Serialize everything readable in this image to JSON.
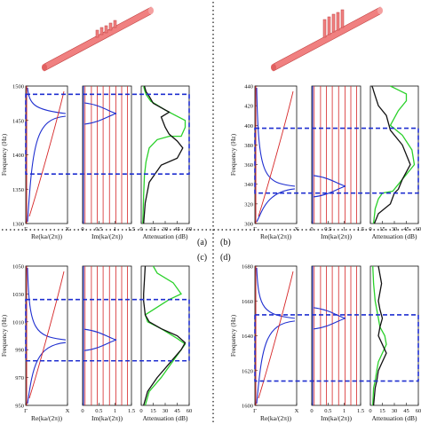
{
  "figure": {
    "panel_labels": [
      "(a)",
      "(b)",
      "(c)",
      "(d)"
    ],
    "colors": {
      "re_curve": "#d62728",
      "im_curve": "#d62728",
      "mode_curve": "#1f2fd0",
      "band_box": "#1f2fd0",
      "pipe": "#f08080",
      "attenuation_1": "#2ad12a",
      "attenuation_2": "#111111"
    },
    "icons": [
      "pipe-with-resonators-left",
      "pipe-with-resonators-right"
    ]
  },
  "chart_data": [
    {
      "type": "line",
      "panel": "(a)",
      "ylabel": "Frequency (Hz)",
      "ylim": [
        1300,
        1500
      ],
      "yticks": [
        "1300",
        "1350",
        "1400",
        "1450",
        "1500"
      ],
      "subplots": [
        {
          "xlabel": "Re(ka/(2π))",
          "xticks": [
            "Γ",
            "X"
          ],
          "xlim": [
            0,
            1
          ]
        },
        {
          "xlabel": "Im(ka/(2π))",
          "xticks": [
            "0",
            "0.5",
            "1",
            "1.5"
          ],
          "xlim": [
            0,
            1.5
          ]
        },
        {
          "xlabel": "Attenuation (dB)",
          "xticks": [
            "0",
            "15",
            "30",
            "45",
            "60"
          ],
          "xlim": [
            0,
            60
          ]
        }
      ],
      "band_edges": [
        1372,
        1488
      ],
      "mode_lines": [
        1460
      ],
      "attenuation": {
        "green": {
          "x": [
            2,
            3,
            4,
            6,
            10,
            20,
            35,
            50,
            55,
            55,
            30,
            12,
            6,
            4,
            3
          ],
          "y": [
            1300,
            1340,
            1370,
            1390,
            1410,
            1422,
            1427,
            1427,
            1440,
            1450,
            1465,
            1478,
            1488,
            1495,
            1500
          ]
        },
        "black": {
          "x": [
            3,
            5,
            10,
            25,
            45,
            52,
            45,
            35,
            30,
            25,
            35,
            15,
            10,
            6,
            4
          ],
          "y": [
            1300,
            1330,
            1360,
            1385,
            1395,
            1410,
            1420,
            1430,
            1440,
            1455,
            1462,
            1475,
            1485,
            1492,
            1500
          ]
        }
      }
    },
    {
      "type": "line",
      "panel": "(b)",
      "ylabel": "Frequency (Hz)",
      "ylim": [
        300,
        440
      ],
      "yticks": [
        "300",
        "320",
        "340",
        "360",
        "380",
        "400",
        "420",
        "440"
      ],
      "subplots": [
        {
          "xlabel": "Re(ka/(2π))",
          "xticks": [
            "Γ",
            "X"
          ],
          "xlim": [
            0,
            1
          ]
        },
        {
          "xlabel": "Im(ka/(2π))",
          "xticks": [
            "0",
            "0.5",
            "1",
            "1.5"
          ],
          "xlim": [
            0,
            1.5
          ]
        },
        {
          "xlabel": "Attenuation (dB)",
          "xticks": [
            "0",
            "15",
            "30",
            "45",
            "60"
          ],
          "xlim": [
            0,
            60
          ]
        }
      ],
      "band_edges": [
        331,
        397
      ],
      "mode_lines": [
        338
      ],
      "attenuation": {
        "green": {
          "x": [
            4,
            6,
            10,
            15,
            28,
            40,
            55,
            52,
            40,
            25,
            35,
            45,
            45,
            35,
            25
          ],
          "y": [
            300,
            315,
            325,
            331,
            333,
            345,
            360,
            375,
            390,
            400,
            415,
            425,
            432,
            436,
            440
          ]
        },
        "black": {
          "x": [
            5,
            10,
            25,
            30,
            35,
            40,
            50,
            40,
            25,
            20,
            10,
            6,
            4,
            3,
            2
          ],
          "y": [
            300,
            310,
            320,
            331,
            335,
            345,
            360,
            380,
            395,
            410,
            420,
            430,
            435,
            438,
            440
          ]
        }
      }
    },
    {
      "type": "line",
      "panel": "(c)",
      "ylabel": "Frequency (Hz)",
      "ylim": [
        950,
        1050
      ],
      "yticks": [
        "950",
        "970",
        "990",
        "1010",
        "1030",
        "1050"
      ],
      "subplots": [
        {
          "xlabel": "Re(ka/(2π))",
          "xticks": [
            "Γ",
            "X"
          ],
          "xlim": [
            0,
            1
          ]
        },
        {
          "xlabel": "Im(ka/(2π))",
          "xticks": [
            "0",
            "0.5",
            "1",
            "1.5"
          ],
          "xlim": [
            0,
            1.5
          ]
        },
        {
          "xlabel": "Attenuation (dB)",
          "xticks": [
            "0",
            "15",
            "30",
            "45",
            "60"
          ],
          "xlim": [
            0,
            60
          ]
        }
      ],
      "band_edges": [
        982,
        1026
      ],
      "mode_lines": [
        997
      ],
      "attenuation": {
        "green": {
          "x": [
            5,
            10,
            25,
            40,
            50,
            55,
            45,
            25,
            8,
            5,
            35,
            50,
            40,
            20,
            15
          ],
          "y": [
            950,
            960,
            970,
            982,
            990,
            994,
            998,
            1005,
            1010,
            1015,
            1026,
            1030,
            1038,
            1045,
            1050
          ]
        },
        "black": {
          "x": [
            3,
            8,
            20,
            35,
            50,
            55,
            45,
            25,
            10,
            5,
            4,
            3,
            3,
            4,
            5
          ],
          "y": [
            950,
            960,
            970,
            980,
            990,
            995,
            1000,
            1005,
            1010,
            1015,
            1020,
            1025,
            1030,
            1040,
            1050
          ]
        }
      }
    },
    {
      "type": "line",
      "panel": "(d)",
      "ylabel": "Frequency (Hz)",
      "ylim": [
        1600,
        1680
      ],
      "yticks": [
        "1600",
        "1620",
        "1640",
        "1660",
        "1680"
      ],
      "subplots": [
        {
          "xlabel": "Re(ka/(2π))",
          "xticks": [
            "Γ",
            "X"
          ],
          "xlim": [
            0,
            1
          ]
        },
        {
          "xlabel": "Im(ka/(2π))",
          "xticks": [
            "0",
            "0.5",
            "1",
            "1.5"
          ],
          "xlim": [
            0,
            1.5
          ]
        },
        {
          "xlabel": "Attenuation (dB)",
          "xticks": [
            "0",
            "15",
            "30",
            "45",
            "60"
          ],
          "xlim": [
            0,
            60
          ]
        }
      ],
      "band_edges": [
        1614,
        1652
      ],
      "mode_lines": [
        1650
      ],
      "attenuation": {
        "green": {
          "x": [
            3,
            4,
            6,
            8,
            10,
            15,
            20,
            18,
            12,
            10,
            8,
            6,
            5,
            4,
            3
          ],
          "y": [
            1600,
            1610,
            1614,
            1620,
            1625,
            1630,
            1635,
            1640,
            1645,
            1650,
            1655,
            1660,
            1665,
            1670,
            1680
          ]
        },
        "black": {
          "x": [
            4,
            6,
            8,
            10,
            15,
            20,
            15,
            10,
            12,
            15,
            12,
            10,
            12,
            14,
            10
          ],
          "y": [
            1600,
            1610,
            1614,
            1620,
            1625,
            1630,
            1635,
            1640,
            1645,
            1650,
            1655,
            1660,
            1665,
            1670,
            1680
          ]
        }
      }
    }
  ]
}
